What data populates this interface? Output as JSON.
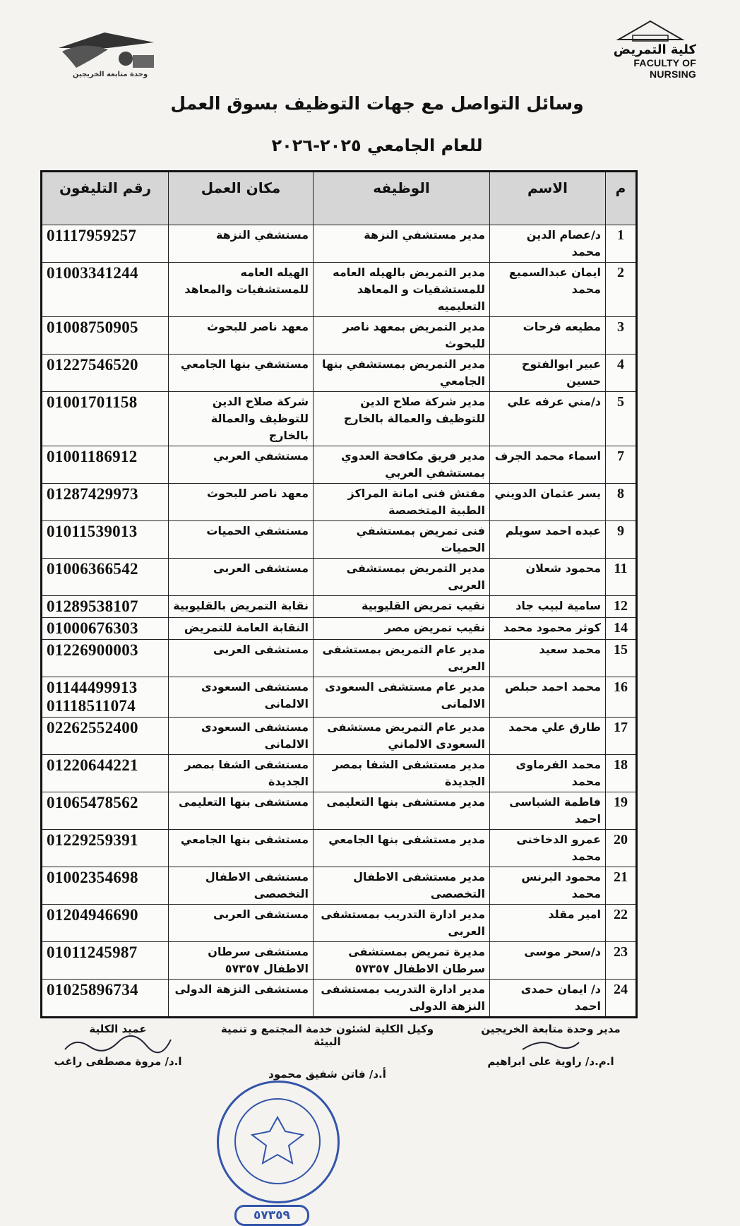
{
  "header": {
    "left_logo_caption": "وحدة متابعة الخريجين",
    "right_logo_arabic": "كلية التمريض",
    "right_logo_english": "FACULTY OF NURSING",
    "title": "وسائل التواصل مع جهات التوظيف بسوق العمل",
    "subtitle": "للعام الجامعي ٢٠٢٥-٢٠٢٦"
  },
  "table": {
    "columns": [
      "م",
      "الاسم",
      "الوظيفه",
      "مكان العمل",
      "رقم التليفون"
    ],
    "rows": [
      {
        "num": "1",
        "name": "د/عصام الدين محمد",
        "job": "مدير مستشفي النزهة",
        "place": "مستشفي النزهة",
        "phone": "01117959257"
      },
      {
        "num": "2",
        "name": "ايمان عبدالسميع محمد",
        "job": "مدير التمريض بالهيله العامه للمستشفيات و المعاهد التعليميه",
        "place": "الهيله العامه للمستشفيات والمعاهد",
        "phone": "01003341244"
      },
      {
        "num": "3",
        "name": "مطيعه فرحات",
        "job": "مدير التمريض بمعهد ناصر للبحوث",
        "place": "معهد ناصر للبحوث",
        "phone": "01008750905"
      },
      {
        "num": "4",
        "name": "عبير ابوالفتوح حسين",
        "job": "مدير التمريض بمستشفي بنها الجامعي",
        "place": "مستشفي بنها الجامعي",
        "phone": "01227546520"
      },
      {
        "num": "5",
        "name": "د/مني عرفه علي",
        "job": "مدير شركة صلاح الدين للتوظيف والعمالة بالخارج",
        "place": "شركة صلاح الدين للتوظيف والعمالة بالخارج",
        "phone": "01001701158"
      },
      {
        "num": "7",
        "name": "اسماء محمد الجرف",
        "job": "مدير فريق مكافحة العدوي بمستشفي العربي",
        "place": "مستشفي العربي",
        "phone": "01001186912"
      },
      {
        "num": "8",
        "name": "يسر عثمان الدويني",
        "job": "مفتش فنى امانة المراكز الطبية المتخصصة",
        "place": "معهد ناصر للبحوث",
        "phone": "01287429973"
      },
      {
        "num": "9",
        "name": "عبده احمد سويلم",
        "job": "فنى تمريض بمستشفي الحميات",
        "place": "مستشفي الحميات",
        "phone": "01011539013"
      },
      {
        "num": "11",
        "name": "محمود شعلان",
        "job": "مدير التمريض بمستشفى العربى",
        "place": "مستشفى العربى",
        "phone": "01006366542"
      },
      {
        "num": "12",
        "name": "سامية لبيب جاد",
        "job": "نقيب تمريض القليوبية",
        "place": "نقابة التمريض بالقليوبية",
        "phone": "01289538107"
      },
      {
        "num": "14",
        "name": "كوثر محمود محمد",
        "job": "نقيب تمريض مصر",
        "place": "النقابة العامة للتمريض",
        "phone": "01000676303"
      },
      {
        "num": "15",
        "name": "محمد سعيد",
        "job": "مدير عام التمريض بمستشفى العربى",
        "place": "مستشفى العربى",
        "phone": "01226900003"
      },
      {
        "num": "16",
        "name": "محمد احمد حبلص",
        "job": "مدير عام مستشفى السعودى الالمانى",
        "place": "مستشفى السعودى الالمانى",
        "phone": "01144499913\n01118511074"
      },
      {
        "num": "17",
        "name": "طارق علي محمد",
        "job": "مدير عام التمريض مستشفى السعودى الالماني",
        "place": "مستشفى السعودى الالمانى",
        "phone": "02262552400"
      },
      {
        "num": "18",
        "name": "محمد الفرماوى محمد",
        "job": "مدير مستشفى الشفا بمصر الجديدة",
        "place": "مستشفى الشفا بمصر الجديدة",
        "phone": "01220644221"
      },
      {
        "num": "19",
        "name": "فاطمة الشباسى احمد",
        "job": "مدير مستشفى بنها التعليمى",
        "place": "مستشفى بنها التعليمى",
        "phone": "01065478562"
      },
      {
        "num": "20",
        "name": "عمرو الدخاخنى محمد",
        "job": "مدير مستشفى بنها الجامعي",
        "place": "مستشفى بنها الجامعي",
        "phone": "01229259391"
      },
      {
        "num": "21",
        "name": "محمود البرنس محمد",
        "job": "مدير مستشفى الاطفال التخصصى",
        "place": "مستشفى الاطفال التخصصى",
        "phone": "01002354698"
      },
      {
        "num": "22",
        "name": "امير مقلد",
        "job": "مدير ادارة التدريب بمستشفى العربى",
        "place": "مستشفى العربى",
        "phone": "01204946690"
      },
      {
        "num": "23",
        "name": "د/سحر موسى",
        "job": "مديرة تمريض بمستشفى سرطان الاطفال ٥٧٣٥٧",
        "place": "مستشفى سرطان الاطفال ٥٧٣٥٧",
        "phone": "01011245987"
      },
      {
        "num": "24",
        "name": "د/ ايمان حمدى احمد",
        "job": "مدير ادارة التدريب بمستشفى النزهة الدولى",
        "place": "مستشفى النزهة الدولى",
        "phone": "01025896734"
      }
    ]
  },
  "signatures": [
    {
      "role": "مدير وحدة متابعة الخريجين",
      "name": "ا.م.د/ راوية على ابراهيم",
      "handwriting": "راوية على"
    },
    {
      "role": "وكيل الكلية لشئون خدمة المجتمع و تنمية البيئة",
      "name": "أ.د/ فاتن شفيق محمود"
    },
    {
      "role": "عميد الكلية",
      "name": "ا.د/ مروة مصطفى راغب",
      "handwriting": "ا.د. مروة مصطفى"
    }
  ],
  "stamp": {
    "text": "جامعة بنها - كلية التمريض",
    "serial": "٥٧٣٥٩"
  },
  "colors": {
    "stamp": "#3355aa",
    "header_bg": "#d6d6d6"
  }
}
